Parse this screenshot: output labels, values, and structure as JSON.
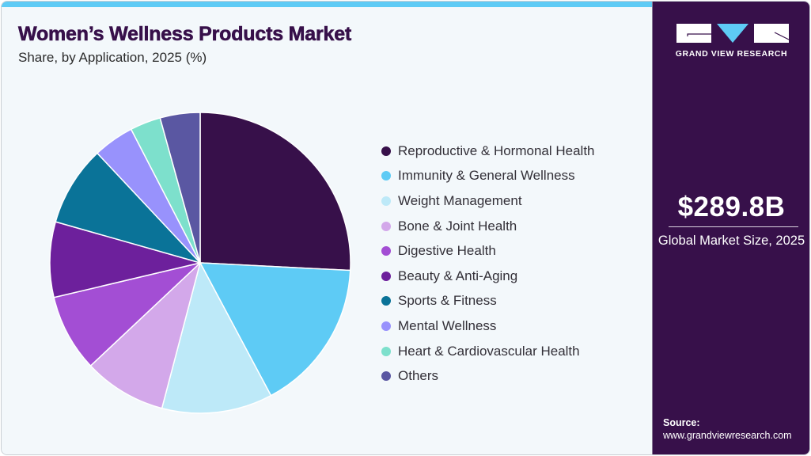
{
  "header": {
    "title": "Women’s Wellness Products Market",
    "subtitle": "Share, by Application, 2025 (%)"
  },
  "colors": {
    "accent_bar": "#5ecbf5",
    "brand_panel": "#37104a",
    "background": "#f3f8fb"
  },
  "chart_data": {
    "type": "pie",
    "title": "Women’s Wellness Products Market",
    "subtitle": "Share, by Application, 2025 (%)",
    "start_angle_deg": 0,
    "direction": "clockwise",
    "legend_position": "right",
    "categories": [
      "Reproductive & Hormonal Health",
      "Immunity & General Wellness",
      "Weight Management",
      "Bone & Joint Health",
      "Digestive Health",
      "Beauty & Anti-Aging",
      "Sports & Fitness",
      "Mental Wellness",
      "Heart & Cardiovascular Health",
      "Others"
    ],
    "values": [
      25.8,
      16.4,
      11.9,
      8.9,
      8.3,
      8.1,
      8.6,
      4.4,
      3.3,
      4.3
    ],
    "colors": [
      "#37104a",
      "#5ecbf5",
      "#bde9f8",
      "#d3a8ea",
      "#a34ed4",
      "#6d209c",
      "#0a7398",
      "#9892fc",
      "#7de0cc",
      "#5a57a2"
    ]
  },
  "legend": {
    "items": [
      {
        "label": "Reproductive & Hormonal Health",
        "color": "#37104a"
      },
      {
        "label": "Immunity & General Wellness",
        "color": "#5ecbf5"
      },
      {
        "label": "Weight Management",
        "color": "#bde9f8"
      },
      {
        "label": "Bone & Joint Health",
        "color": "#d3a8ea"
      },
      {
        "label": "Digestive Health",
        "color": "#a34ed4"
      },
      {
        "label": "Beauty & Anti-Aging",
        "color": "#6d209c"
      },
      {
        "label": "Sports & Fitness",
        "color": "#0a7398"
      },
      {
        "label": "Mental Wellness",
        "color": "#9892fc"
      },
      {
        "label": "Heart & Cardiovascular Health",
        "color": "#7de0cc"
      },
      {
        "label": "Others",
        "color": "#5a57a2"
      }
    ]
  },
  "sidebar": {
    "logo_text": "GRAND VIEW RESEARCH",
    "market_size_value": "$289.8B",
    "market_size_label": "Global Market Size, 2025",
    "source_label": "Source:",
    "source_url": "www.grandviewresearch.com"
  }
}
